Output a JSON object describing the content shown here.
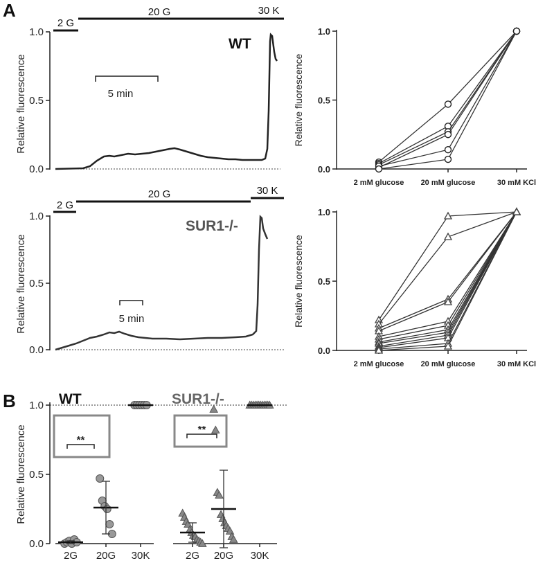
{
  "colors": {
    "wt": "#222222",
    "sur": "#555555",
    "marker_fill": "#999999",
    "box": "#888888"
  },
  "panels": {
    "a_label": "A",
    "b_label": "B"
  },
  "chart_data": [
    {
      "id": "a-wt-trace",
      "type": "line",
      "ylabel": "Relative fluorescence",
      "ylim": [
        0,
        1.0
      ],
      "yticks": [
        "0.0",
        "0.5",
        "1.0"
      ],
      "condition_bars": [
        "2 G",
        "20 G",
        "30 K"
      ],
      "scale_bar": "5 min",
      "genotype": "WT",
      "baseline": "dotted"
    },
    {
      "id": "a-sur-trace",
      "type": "line",
      "ylabel": "Relative fluorescence",
      "ylim": [
        0,
        1.0
      ],
      "yticks": [
        "0.0",
        "0.5",
        "1.0"
      ],
      "condition_bars": [
        "2 G",
        "20 G",
        "30 K"
      ],
      "scale_bar": "5 min",
      "genotype": "SUR1-/-",
      "baseline": "dotted"
    },
    {
      "id": "a-wt-paired",
      "type": "line",
      "marker": "circle",
      "categories": [
        "2 mM glucose",
        "20 mM glucose",
        "30 mM KCl"
      ],
      "ylabel": "Relative fluorescence",
      "ylim": [
        0,
        1.0
      ],
      "yticks": [
        "0.0",
        "0.5",
        "1.0"
      ],
      "series": [
        {
          "values": [
            0.05,
            0.47,
            1.0
          ]
        },
        {
          "values": [
            0.04,
            0.31,
            1.0
          ]
        },
        {
          "values": [
            0.03,
            0.27,
            1.0
          ]
        },
        {
          "values": [
            0.01,
            0.25,
            1.0
          ]
        },
        {
          "values": [
            0.02,
            0.14,
            1.0
          ]
        },
        {
          "values": [
            0.0,
            0.07,
            1.0
          ]
        }
      ]
    },
    {
      "id": "a-sur-paired",
      "type": "line",
      "marker": "triangle",
      "categories": [
        "2 mM glucose",
        "20 mM glucose",
        "30 mM KCl"
      ],
      "ylabel": "Relative fluorescence",
      "ylim": [
        0,
        1.0
      ],
      "yticks": [
        "0.0",
        "0.5",
        "1.0"
      ],
      "series": [
        {
          "values": [
            0.22,
            0.97,
            1.0
          ]
        },
        {
          "values": [
            0.19,
            0.82,
            1.0
          ]
        },
        {
          "values": [
            0.16,
            0.37,
            1.0
          ]
        },
        {
          "values": [
            0.14,
            0.35,
            1.0
          ]
        },
        {
          "values": [
            0.1,
            0.21,
            1.0
          ]
        },
        {
          "values": [
            0.08,
            0.18,
            1.0
          ]
        },
        {
          "values": [
            0.06,
            0.15,
            1.0
          ]
        },
        {
          "values": [
            0.05,
            0.13,
            1.0
          ]
        },
        {
          "values": [
            0.03,
            0.11,
            1.0
          ]
        },
        {
          "values": [
            0.02,
            0.09,
            1.0
          ]
        },
        {
          "values": [
            0.01,
            0.05,
            1.0
          ]
        },
        {
          "values": [
            0.0,
            0.03,
            1.0
          ]
        }
      ]
    },
    {
      "id": "b-scatter",
      "type": "scatter",
      "ylabel": "Relative fluorescence",
      "ylim": [
        0,
        1.0
      ],
      "yticks": [
        "0.0",
        "0.5",
        "1.0"
      ],
      "groups": [
        {
          "name": "WT",
          "marker": "circle",
          "categories": [
            "2G",
            "20G",
            "30K"
          ],
          "points": [
            [
              0.0,
              0.01,
              0.02,
              0.0,
              0.03,
              0.01
            ],
            [
              0.47,
              0.31,
              0.27,
              0.25,
              0.14,
              0.07
            ],
            [
              1.0,
              1.0,
              1.0,
              1.0,
              1.0,
              1.0
            ]
          ],
          "mean": [
            0.01,
            0.26,
            1.0
          ],
          "sd": [
            0.01,
            0.19,
            0.0
          ],
          "significance": "**"
        },
        {
          "name": "SUR1-/-",
          "marker": "triangle",
          "categories": [
            "2G",
            "20G",
            "30K"
          ],
          "points": [
            [
              0.22,
              0.19,
              0.16,
              0.14,
              0.1,
              0.08,
              0.06,
              0.05,
              0.03,
              0.02,
              0.01,
              0.0
            ],
            [
              0.97,
              0.82,
              0.37,
              0.35,
              0.21,
              0.18,
              0.15,
              0.13,
              0.11,
              0.09,
              0.05,
              0.03
            ],
            [
              1.0,
              1.0,
              1.0,
              1.0,
              1.0,
              1.0,
              1.0,
              1.0,
              1.0,
              1.0,
              1.0,
              1.0
            ]
          ],
          "mean": [
            0.08,
            0.25,
            1.0
          ],
          "sd": [
            0.07,
            0.28,
            0.0
          ],
          "significance": "**"
        }
      ]
    }
  ]
}
